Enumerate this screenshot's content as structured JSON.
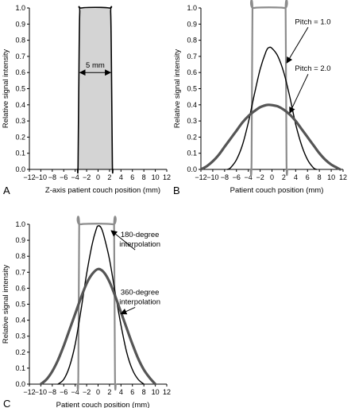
{
  "chart_data": [
    {
      "panel": "A",
      "type": "area",
      "xlabel": "Z-axis patient couch position (mm)",
      "ylabel": "Relative signal intensity",
      "xlim": [
        -12,
        12
      ],
      "ylim": [
        0,
        1.0
      ],
      "xticks": [
        "−12",
        "−10",
        "−8",
        "−6",
        "−4",
        "−2",
        "0",
        "2",
        "4",
        "6",
        "8",
        "10",
        "12"
      ],
      "yticks": [
        "0.0",
        "0.1",
        "0.2",
        "0.3",
        "0.4",
        "0.5",
        "0.6",
        "0.7",
        "0.8",
        "0.9",
        "1.0"
      ],
      "fill_color": "#d4d4d4",
      "series": [
        {
          "color": "#000000",
          "width": 1.6,
          "points": [
            [
              -3.6,
              0
            ],
            [
              -3.5,
              0.03
            ],
            [
              -3.35,
              0.6
            ],
            [
              -3.2,
              0.97
            ],
            [
              -2.9,
              1.0
            ],
            [
              1.9,
              1.0
            ],
            [
              2.2,
              0.97
            ],
            [
              2.35,
              0.6
            ],
            [
              2.5,
              0.03
            ],
            [
              2.6,
              0
            ]
          ]
        }
      ],
      "annotations": [
        {
          "text": "5 mm",
          "x1": -3.3,
          "x2": 2.3,
          "y": 0.6
        }
      ]
    },
    {
      "panel": "B",
      "type": "line",
      "xlabel": "Patient couch position (mm)",
      "ylabel": "Relative signal intensity",
      "xlim": [
        -12,
        12
      ],
      "ylim": [
        0,
        1.0
      ],
      "xticks": [
        "−12",
        "−10",
        "−8",
        "−6",
        "−4",
        "−2",
        "0",
        "2",
        "4",
        "6",
        "8",
        "10",
        "12"
      ],
      "yticks": [
        "0.0",
        "0.1",
        "0.2",
        "0.3",
        "0.4",
        "0.5",
        "0.6",
        "0.7",
        "0.8",
        "0.9",
        "1.0"
      ],
      "series": [
        {
          "color": "#8c8c8c",
          "width": 2.2,
          "points": [
            [
              -3.6,
              0
            ],
            [
              -3.45,
              0.05
            ],
            [
              -3.3,
              0.97
            ],
            [
              -3.1,
              1.0
            ],
            [
              2.1,
              1.0
            ],
            [
              2.3,
              0.97
            ],
            [
              2.45,
              0.05
            ],
            [
              2.6,
              0
            ]
          ]
        },
        {
          "color": "#000000",
          "width": 1.4,
          "points": [
            [
              -7.5,
              0
            ],
            [
              -7,
              0.01
            ],
            [
              -6,
              0.06
            ],
            [
              -5,
              0.15
            ],
            [
              -4,
              0.29
            ],
            [
              -3,
              0.46
            ],
            [
              -2,
              0.62
            ],
            [
              -1,
              0.73
            ],
            [
              -0.5,
              0.755
            ],
            [
              0,
              0.75
            ],
            [
              1,
              0.7
            ],
            [
              2,
              0.6
            ],
            [
              3,
              0.45
            ],
            [
              4,
              0.28
            ],
            [
              5,
              0.15
            ],
            [
              6,
              0.06
            ],
            [
              7,
              0.01
            ],
            [
              7.5,
              0
            ]
          ]
        },
        {
          "color": "#555555",
          "width": 3.2,
          "points": [
            [
              -12,
              0
            ],
            [
              -11,
              0.02
            ],
            [
              -10,
              0.05
            ],
            [
              -9,
              0.09
            ],
            [
              -8,
              0.14
            ],
            [
              -7,
              0.19
            ],
            [
              -6,
              0.24
            ],
            [
              -5,
              0.29
            ],
            [
              -4,
              0.33
            ],
            [
              -3,
              0.36
            ],
            [
              -2,
              0.385
            ],
            [
              -1,
              0.398
            ],
            [
              -0.5,
              0.4
            ],
            [
              0,
              0.398
            ],
            [
              1,
              0.39
            ],
            [
              2,
              0.37
            ],
            [
              3,
              0.34
            ],
            [
              4,
              0.3
            ],
            [
              5,
              0.25
            ],
            [
              6,
              0.2
            ],
            [
              7,
              0.15
            ],
            [
              8,
              0.1
            ],
            [
              9,
              0.06
            ],
            [
              10,
              0.03
            ],
            [
              11,
              0.01
            ],
            [
              11.5,
              0
            ]
          ]
        }
      ],
      "annotations": [
        {
          "text": "Pitch = 1.0",
          "label_x": 6.9,
          "label_y": 0.9,
          "arrow_to": [
            2.5,
            0.66
          ]
        },
        {
          "text": "Pitch = 2.0",
          "label_x": 6.9,
          "label_y": 0.61,
          "arrow_to": [
            3.0,
            0.35
          ]
        }
      ]
    },
    {
      "panel": "C",
      "type": "line",
      "xlabel": "Patient couch position (mm)",
      "ylabel": "Relative signal intensity",
      "xlim": [
        -12,
        12
      ],
      "ylim": [
        0,
        1.0
      ],
      "xticks": [
        "−12",
        "−10",
        "−8",
        "−6",
        "−4",
        "−2",
        "0",
        "2",
        "4",
        "6",
        "8",
        "10",
        "12"
      ],
      "yticks": [
        "0.0",
        "0.1",
        "0.2",
        "0.3",
        "0.4",
        "0.5",
        "0.6",
        "0.7",
        "0.8",
        "0.9",
        "1.0"
      ],
      "series": [
        {
          "color": "#8c8c8c",
          "width": 2.2,
          "points": [
            [
              -3.6,
              0
            ],
            [
              -3.45,
              0.05
            ],
            [
              -3.3,
              0.97
            ],
            [
              -3.1,
              1.0
            ],
            [
              2.6,
              1.0
            ],
            [
              2.8,
              0.97
            ],
            [
              2.95,
              0.05
            ],
            [
              3.1,
              0
            ]
          ]
        },
        {
          "color": "#000000",
          "width": 1.4,
          "points": [
            [
              -7,
              0
            ],
            [
              -6,
              0.03
            ],
            [
              -5,
              0.11
            ],
            [
              -4,
              0.25
            ],
            [
              -3,
              0.46
            ],
            [
              -2,
              0.69
            ],
            [
              -1,
              0.88
            ],
            [
              -0.3,
              0.97
            ],
            [
              0,
              0.99
            ],
            [
              0.5,
              0.98
            ],
            [
              1,
              0.93
            ],
            [
              2,
              0.78
            ],
            [
              3,
              0.57
            ],
            [
              4,
              0.37
            ],
            [
              5,
              0.2
            ],
            [
              6,
              0.09
            ],
            [
              7,
              0.03
            ],
            [
              8,
              0
            ]
          ]
        },
        {
          "color": "#555555",
          "width": 3.2,
          "points": [
            [
              -10,
              0
            ],
            [
              -9,
              0.03
            ],
            [
              -8,
              0.08
            ],
            [
              -7,
              0.15
            ],
            [
              -6,
              0.24
            ],
            [
              -5,
              0.34
            ],
            [
              -4,
              0.44
            ],
            [
              -3,
              0.54
            ],
            [
              -2,
              0.63
            ],
            [
              -1,
              0.69
            ],
            [
              0,
              0.72
            ],
            [
              1,
              0.7
            ],
            [
              2,
              0.64
            ],
            [
              3,
              0.55
            ],
            [
              4,
              0.45
            ],
            [
              5,
              0.35
            ],
            [
              6,
              0.25
            ],
            [
              7,
              0.16
            ],
            [
              8,
              0.09
            ],
            [
              9,
              0.04
            ],
            [
              10,
              0
            ]
          ]
        }
      ],
      "annotations": [
        {
          "text": "180-degree",
          "text2": "interpolation",
          "label_x": 7.3,
          "label_y": 0.92,
          "arrow_to": [
            2.3,
            0.96
          ]
        },
        {
          "text": "360-degree",
          "text2": "interpolation",
          "label_x": 7.3,
          "label_y": 0.56,
          "arrow_to": [
            4.0,
            0.44
          ]
        }
      ]
    }
  ]
}
